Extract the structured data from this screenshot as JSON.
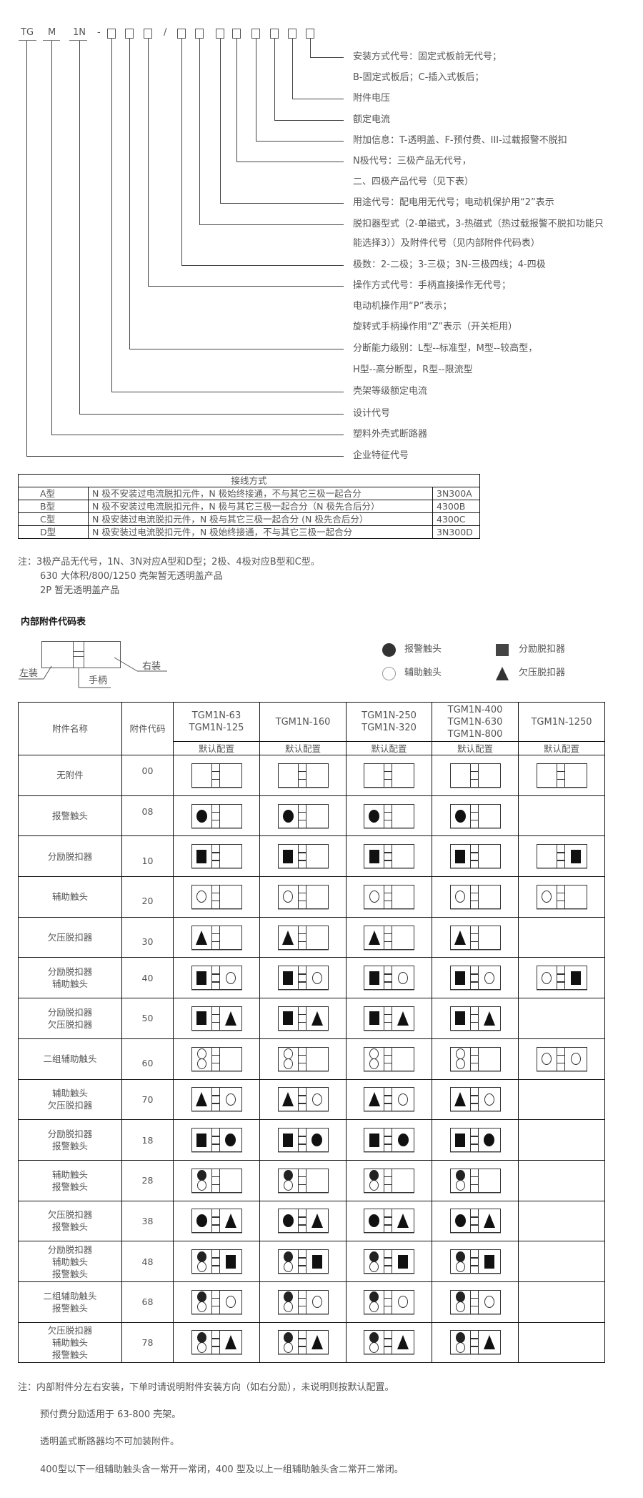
{
  "code": {
    "prefix": [
      "TG",
      "M",
      "1N"
    ],
    "dash": "-",
    "slash": "/"
  },
  "code_labels": [
    "安装方式代号：固定式板前无代号；",
    "B-固定式板后；C-插入式板后；",
    "附件电压",
    "额定电流",
    "附加信息：T-透明盖、F-预付费、III-过载报警不脱扣",
    "N极代号：三极产品无代号，",
    "二、四极产品代号（见下表）",
    "用途代号：配电用无代号；电动机保护用“2”表示",
    "脱扣器型式（2-单磁式，3-热磁式（热过载报警不脱扣功能只",
    "能选择3））及附件代号（见内部附件代码表）",
    "极数：2-二极；3-三极；3N-三极四线；4-四极",
    "操作方式代号：手柄直接操作无代号；",
    "电动机操作用“P”表示；",
    "旋转式手柄操作用“Z”表示（开关柜用）",
    "分断能力级别：L型--标准型，M型--较高型，",
    "H型--高分断型，R型--限流型",
    "壳架等级额定电流",
    "设计代号",
    "塑料外壳式断路器",
    "企业特征代号"
  ],
  "wiring_table": {
    "header": "接线方式",
    "rows": [
      {
        "type": "A型",
        "desc": "N 极不安装过电流脱扣元件，N 极始终接通，不与其它三极一起合分",
        "code": "3N300A"
      },
      {
        "type": "B型",
        "desc": "N 极不安装过电流脱扣元件，N 极与其它三极一起合分（N 极先合后分）",
        "code": "4300B"
      },
      {
        "type": "C型",
        "desc": "N 极安装过电流脱扣元件，N 极与其它三极一起合分 (N 极先合后分）",
        "code": "4300C"
      },
      {
        "type": "D型",
        "desc": "N 极安装过电流脱扣元件，N 极始终接通，不与其它三极一起合分",
        "code": "3N300D"
      }
    ]
  },
  "notes": [
    "注：3极产品无代号，1N、3N对应A型和D型；2极、4极对应B型和C型。",
    "630 大体积/800/1250 壳架暂无透明盖产品",
    "2P 暂无透明盖产品"
  ],
  "accessory_title": "内部附件代码表",
  "legend": {
    "left_label": "左装",
    "right_label": "右装",
    "handle_label": "手柄",
    "items": [
      {
        "symbol": "circle-filled",
        "label": "报警触头"
      },
      {
        "symbol": "square",
        "label": "分励脱扣器"
      },
      {
        "symbol": "circle-empty",
        "label": "辅助触头"
      },
      {
        "symbol": "triangle",
        "label": "欠压脱扣器"
      }
    ]
  },
  "accessory_table": {
    "col_name": "附件名称",
    "col_code": "附件代码",
    "models": [
      [
        "TGM1N-63",
        "TGM1N-125"
      ],
      [
        "TGM1N-160"
      ],
      [
        "TGM1N-250",
        "TGM1N-320"
      ],
      [
        "TGM1N-400",
        "TGM1N-630",
        "TGM1N-800"
      ],
      [
        "TGM1N-1250"
      ]
    ],
    "sub_header": "默认配置",
    "rows": [
      {
        "name": [
          "无附件"
        ],
        "code": "00",
        "cfg": [
          [
            "",
            ""
          ],
          [
            "",
            ""
          ],
          [
            "",
            ""
          ],
          [
            "",
            ""
          ],
          [
            "",
            ""
          ]
        ]
      },
      {
        "name": [
          "报警触头"
        ],
        "code": "08",
        "cfg": [
          [
            "fc",
            ""
          ],
          [
            "fc",
            ""
          ],
          [
            "fc",
            ""
          ],
          [
            "fc",
            ""
          ],
          null
        ]
      },
      {
        "name": [
          "分励脱扣器"
        ],
        "code": "10",
        "cfg": [
          [
            "sq",
            ""
          ],
          [
            "sq",
            ""
          ],
          [
            "sq",
            ""
          ],
          [
            "sq",
            ""
          ],
          [
            "",
            "sq"
          ]
        ]
      },
      {
        "name": [
          "辅助触头"
        ],
        "code": "20",
        "cfg": [
          [
            "ec",
            ""
          ],
          [
            "ec",
            ""
          ],
          [
            "ec",
            ""
          ],
          [
            "ec",
            ""
          ],
          [
            "ec",
            ""
          ]
        ]
      },
      {
        "name": [
          "欠压脱扣器"
        ],
        "code": "30",
        "cfg": [
          [
            "tr",
            ""
          ],
          [
            "tr",
            ""
          ],
          [
            "tr",
            ""
          ],
          [
            "tr",
            ""
          ],
          null
        ]
      },
      {
        "name": [
          "分励脱扣器",
          "辅助触头"
        ],
        "code": "40",
        "cfg": [
          [
            "sq",
            "ec"
          ],
          [
            "sq",
            "ec"
          ],
          [
            "sq",
            "ec"
          ],
          [
            "sq",
            "ec"
          ],
          [
            "ec",
            "sq"
          ]
        ]
      },
      {
        "name": [
          "分励脱扣器",
          "欠压脱扣器"
        ],
        "code": "50",
        "cfg": [
          [
            "sq",
            "tr"
          ],
          [
            "sq",
            "tr"
          ],
          [
            "sq",
            "tr"
          ],
          [
            "sq",
            "tr"
          ],
          null
        ]
      },
      {
        "name": [
          "二组辅助触头"
        ],
        "code": "60",
        "cfg": [
          [
            "ee",
            ""
          ],
          [
            "ee",
            ""
          ],
          [
            "ee",
            ""
          ],
          [
            "ee",
            ""
          ],
          [
            "ec",
            "ec"
          ]
        ]
      },
      {
        "name": [
          "辅助触头",
          "欠压脱扣器"
        ],
        "code": "70",
        "cfg": [
          [
            "tr",
            "ec"
          ],
          [
            "tr",
            "ec"
          ],
          [
            "tr",
            "ec"
          ],
          [
            "tr",
            "ec"
          ],
          null
        ]
      },
      {
        "name": [
          "分励脱扣器",
          "报警触头"
        ],
        "code": "18",
        "cfg": [
          [
            "sq",
            "fc"
          ],
          [
            "sq",
            "fc"
          ],
          [
            "sq",
            "fc"
          ],
          [
            "sq",
            "fc"
          ],
          null
        ]
      },
      {
        "name": [
          "辅助触头",
          "报警触头"
        ],
        "code": "28",
        "cfg": [
          [
            "fe",
            ""
          ],
          [
            "fe",
            ""
          ],
          [
            "fe",
            ""
          ],
          [
            "fe",
            ""
          ],
          null
        ]
      },
      {
        "name": [
          "欠压脱扣器",
          "报警触头"
        ],
        "code": "38",
        "cfg": [
          [
            "fc",
            "tr"
          ],
          [
            "fc",
            "tr"
          ],
          [
            "fc",
            "tr"
          ],
          [
            "fc",
            "tr"
          ],
          null
        ]
      },
      {
        "name": [
          "分励脱扣器",
          "辅助触头",
          "报警触头"
        ],
        "code": "48",
        "cfg": [
          [
            "fe",
            "sq"
          ],
          [
            "fe",
            "sq"
          ],
          [
            "fe",
            "sq"
          ],
          [
            "fe",
            "sq"
          ],
          null
        ]
      },
      {
        "name": [
          "二组辅助触头",
          "报警触头"
        ],
        "code": "68",
        "cfg": [
          [
            "fe",
            "ec"
          ],
          [
            "fe",
            "ec"
          ],
          [
            "fe",
            "ec"
          ],
          [
            "fe",
            "ec"
          ],
          null
        ]
      },
      {
        "name": [
          "欠压脱扣器",
          "辅助触头",
          "报警触头"
        ],
        "code": "78",
        "cfg": [
          [
            "fe",
            "tr"
          ],
          [
            "fe",
            "tr"
          ],
          [
            "fe",
            "tr"
          ],
          [
            "fe",
            "tr"
          ],
          null
        ]
      }
    ]
  },
  "footnotes": [
    "注：内部附件分左右安装，下单时请说明附件安装方向（如右分励），未说明则按默认配置。",
    "预付费分励适用于 63-800 壳架。",
    "透明盖式断路器均不可加装附件。",
    "400型以下一组辅助触头含一常开一常闭，400 型及以上一组辅助触头含二常开二常闭。"
  ]
}
